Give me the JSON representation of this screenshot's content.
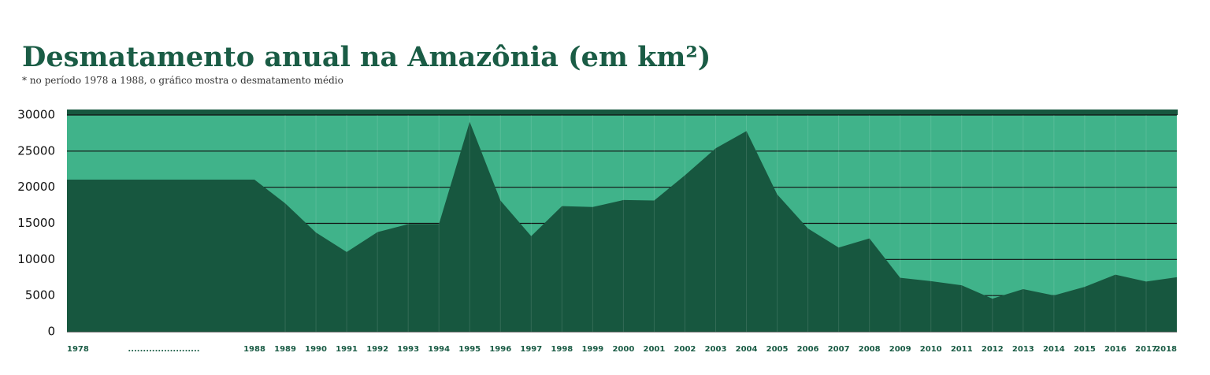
{
  "chart_data": {
    "type": "area",
    "title": "Desmatamento anual na Amazônia (em km²)",
    "subtitle": "* no período 1978 a 1988, o gráfico mostra o desmatamento médio",
    "categories": [
      "1978",
      "1988",
      "1989",
      "1990",
      "1991",
      "1992",
      "1993",
      "1994",
      "1995",
      "1996",
      "1997",
      "1998",
      "1999",
      "2000",
      "2001",
      "2002",
      "2003",
      "2004",
      "2005",
      "2006",
      "2007",
      "2008",
      "2009",
      "2010",
      "2011",
      "2012",
      "2013",
      "2014",
      "2015",
      "2016",
      "2017",
      "2018"
    ],
    "gap_label": "........................",
    "values": [
      21050,
      21050,
      17770,
      13730,
      11030,
      13786,
      14896,
      14896,
      29059,
      18161,
      13227,
      17383,
      17259,
      18226,
      18165,
      21651,
      25396,
      27772,
      19014,
      14286,
      11651,
      12911,
      7464,
      7000,
      6418,
      4571,
      5891,
      5012,
      6207,
      7893,
      6947,
      7536
    ],
    "color": "#17573f",
    "background_color": "#40b38a",
    "ylim": [
      0,
      30000
    ],
    "yticks": [
      0,
      5000,
      10000,
      15000,
      20000,
      25000,
      30000
    ],
    "grid": true
  }
}
